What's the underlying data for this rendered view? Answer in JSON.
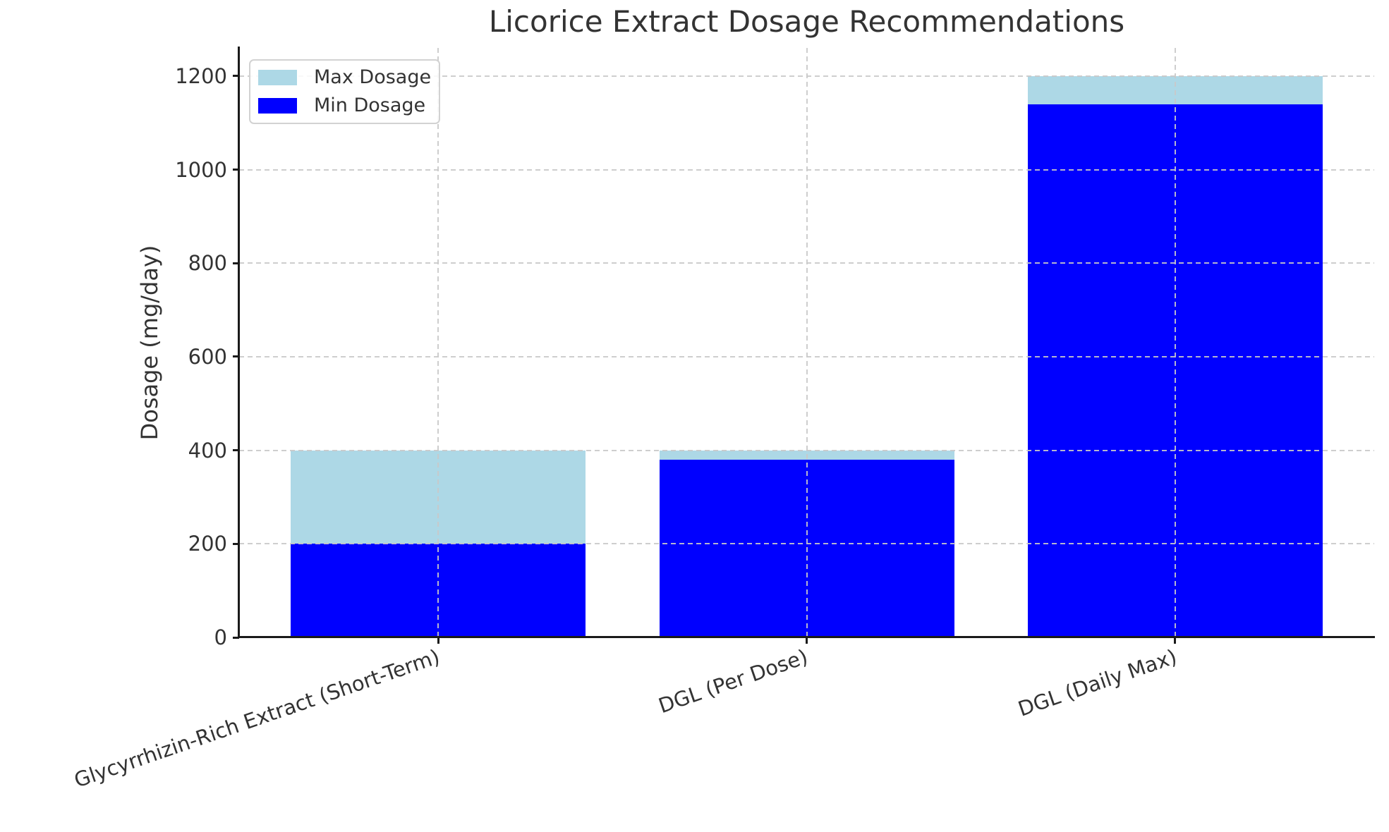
{
  "chart_data": {
    "type": "bar",
    "title": "Licorice Extract Dosage Recommendations",
    "xlabel": "",
    "ylabel": "Dosage (mg/day)",
    "categories": [
      "Glycyrrhizin-Rich Extract (Short-Term)",
      "DGL (Per Dose)",
      "DGL (Daily Max)"
    ],
    "series": [
      {
        "name": "Max Dosage",
        "color": "#ADD8E6",
        "values": [
          400,
          400,
          1200
        ]
      },
      {
        "name": "Min Dosage",
        "color": "#0000FF",
        "values": [
          200,
          380,
          1140
        ]
      }
    ],
    "bar_style": "overlaid-same-x",
    "yticks": [
      0,
      200,
      400,
      600,
      800,
      1000,
      1200
    ],
    "ylim": [
      0,
      1260
    ],
    "grid": "dashed-both-axes-over-bars",
    "legend": {
      "position": "upper-left",
      "entries": [
        "Max Dosage",
        "Min Dosage"
      ]
    },
    "x_tick_rotation_deg": 19,
    "colors": {
      "max_dosage": "#ADD8E6",
      "min_dosage": "#0000FF",
      "grid": "#c9c9c9",
      "spine": "#1a1a1a",
      "text": "#333333",
      "background": "#ffffff"
    }
  }
}
